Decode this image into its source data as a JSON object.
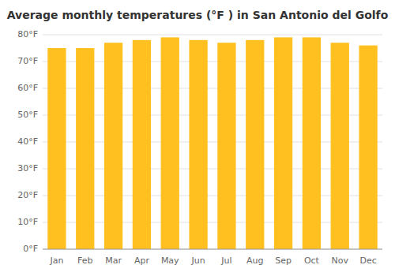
{
  "chart_data": {
    "type": "bar",
    "title": "Average monthly temperatures (°F ) in San Antonio del Golfo",
    "categories": [
      "Jan",
      "Feb",
      "Mar",
      "Apr",
      "May",
      "Jun",
      "Jul",
      "Aug",
      "Sep",
      "Oct",
      "Nov",
      "Dec"
    ],
    "values": [
      75.0,
      75.0,
      77.0,
      78.0,
      79.0,
      78.0,
      77.0,
      78.0,
      79.0,
      79.0,
      77.0,
      76.0
    ],
    "color": "#FFC020",
    "ylim": [
      0,
      80
    ],
    "yticks": [
      {
        "value": 0,
        "label": "0°F"
      },
      {
        "value": 10,
        "label": "10°F"
      },
      {
        "value": 20,
        "label": "20°F"
      },
      {
        "value": 30,
        "label": "30°F"
      },
      {
        "value": 40,
        "label": "40°F"
      },
      {
        "value": 50,
        "label": "50°F"
      },
      {
        "value": 60,
        "label": "60°F"
      },
      {
        "value": 70,
        "label": "70°F"
      },
      {
        "value": 80,
        "label": "80°F"
      }
    ],
    "grid": true
  }
}
